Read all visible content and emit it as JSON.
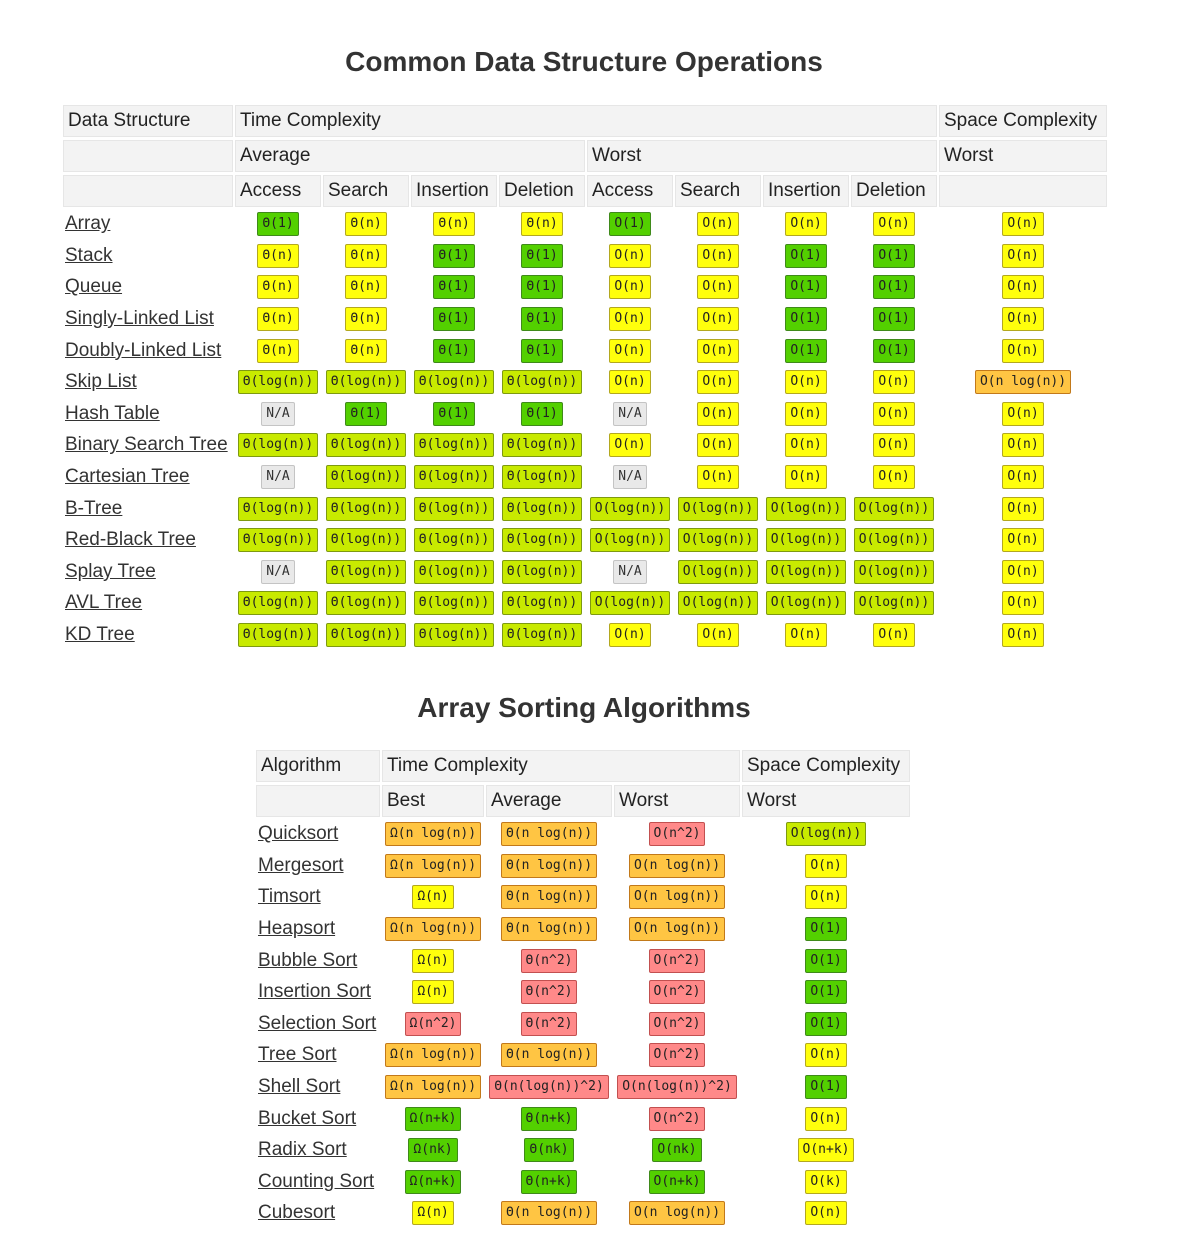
{
  "page": {
    "ds_title": "Common Data Structure Operations",
    "sort_title": "Array Sorting Algorithms"
  },
  "colors": {
    "green": "#53d000",
    "light-green": "#c8ea00",
    "yellow": "#ffff0c",
    "orange": "#ffc543",
    "red": "#ff8989",
    "gray": "#e9e9e9"
  },
  "ds": {
    "headers": {
      "data_structure": "Data Structure",
      "time_complexity": "Time Complexity",
      "space_complexity": "Space Complexity",
      "average": "Average",
      "worst": "Worst",
      "space_worst": "Worst",
      "ops": [
        "Access",
        "Search",
        "Insertion",
        "Deletion",
        "Access",
        "Search",
        "Insertion",
        "Deletion"
      ]
    },
    "rows": [
      {
        "name": "Array",
        "cells": [
          [
            "Θ(1)",
            "green"
          ],
          [
            "Θ(n)",
            "yellow"
          ],
          [
            "Θ(n)",
            "yellow"
          ],
          [
            "Θ(n)",
            "yellow"
          ],
          [
            "O(1)",
            "green"
          ],
          [
            "O(n)",
            "yellow"
          ],
          [
            "O(n)",
            "yellow"
          ],
          [
            "O(n)",
            "yellow"
          ]
        ],
        "space": [
          "O(n)",
          "yellow"
        ]
      },
      {
        "name": "Stack",
        "cells": [
          [
            "Θ(n)",
            "yellow"
          ],
          [
            "Θ(n)",
            "yellow"
          ],
          [
            "Θ(1)",
            "green"
          ],
          [
            "Θ(1)",
            "green"
          ],
          [
            "O(n)",
            "yellow"
          ],
          [
            "O(n)",
            "yellow"
          ],
          [
            "O(1)",
            "green"
          ],
          [
            "O(1)",
            "green"
          ]
        ],
        "space": [
          "O(n)",
          "yellow"
        ]
      },
      {
        "name": "Queue",
        "cells": [
          [
            "Θ(n)",
            "yellow"
          ],
          [
            "Θ(n)",
            "yellow"
          ],
          [
            "Θ(1)",
            "green"
          ],
          [
            "Θ(1)",
            "green"
          ],
          [
            "O(n)",
            "yellow"
          ],
          [
            "O(n)",
            "yellow"
          ],
          [
            "O(1)",
            "green"
          ],
          [
            "O(1)",
            "green"
          ]
        ],
        "space": [
          "O(n)",
          "yellow"
        ]
      },
      {
        "name": "Singly-Linked List",
        "cells": [
          [
            "Θ(n)",
            "yellow"
          ],
          [
            "Θ(n)",
            "yellow"
          ],
          [
            "Θ(1)",
            "green"
          ],
          [
            "Θ(1)",
            "green"
          ],
          [
            "O(n)",
            "yellow"
          ],
          [
            "O(n)",
            "yellow"
          ],
          [
            "O(1)",
            "green"
          ],
          [
            "O(1)",
            "green"
          ]
        ],
        "space": [
          "O(n)",
          "yellow"
        ]
      },
      {
        "name": "Doubly-Linked List",
        "cells": [
          [
            "Θ(n)",
            "yellow"
          ],
          [
            "Θ(n)",
            "yellow"
          ],
          [
            "Θ(1)",
            "green"
          ],
          [
            "Θ(1)",
            "green"
          ],
          [
            "O(n)",
            "yellow"
          ],
          [
            "O(n)",
            "yellow"
          ],
          [
            "O(1)",
            "green"
          ],
          [
            "O(1)",
            "green"
          ]
        ],
        "space": [
          "O(n)",
          "yellow"
        ]
      },
      {
        "name": "Skip List",
        "cells": [
          [
            "Θ(log(n))",
            "light-green"
          ],
          [
            "Θ(log(n))",
            "light-green"
          ],
          [
            "Θ(log(n))",
            "light-green"
          ],
          [
            "Θ(log(n))",
            "light-green"
          ],
          [
            "O(n)",
            "yellow"
          ],
          [
            "O(n)",
            "yellow"
          ],
          [
            "O(n)",
            "yellow"
          ],
          [
            "O(n)",
            "yellow"
          ]
        ],
        "space": [
          "O(n log(n))",
          "orange"
        ]
      },
      {
        "name": "Hash Table",
        "cells": [
          [
            "N/A",
            "gray"
          ],
          [
            "Θ(1)",
            "green"
          ],
          [
            "Θ(1)",
            "green"
          ],
          [
            "Θ(1)",
            "green"
          ],
          [
            "N/A",
            "gray"
          ],
          [
            "O(n)",
            "yellow"
          ],
          [
            "O(n)",
            "yellow"
          ],
          [
            "O(n)",
            "yellow"
          ]
        ],
        "space": [
          "O(n)",
          "yellow"
        ]
      },
      {
        "name": "Binary Search Tree",
        "cells": [
          [
            "Θ(log(n))",
            "light-green"
          ],
          [
            "Θ(log(n))",
            "light-green"
          ],
          [
            "Θ(log(n))",
            "light-green"
          ],
          [
            "Θ(log(n))",
            "light-green"
          ],
          [
            "O(n)",
            "yellow"
          ],
          [
            "O(n)",
            "yellow"
          ],
          [
            "O(n)",
            "yellow"
          ],
          [
            "O(n)",
            "yellow"
          ]
        ],
        "space": [
          "O(n)",
          "yellow"
        ]
      },
      {
        "name": "Cartesian Tree",
        "cells": [
          [
            "N/A",
            "gray"
          ],
          [
            "Θ(log(n))",
            "light-green"
          ],
          [
            "Θ(log(n))",
            "light-green"
          ],
          [
            "Θ(log(n))",
            "light-green"
          ],
          [
            "N/A",
            "gray"
          ],
          [
            "O(n)",
            "yellow"
          ],
          [
            "O(n)",
            "yellow"
          ],
          [
            "O(n)",
            "yellow"
          ]
        ],
        "space": [
          "O(n)",
          "yellow"
        ]
      },
      {
        "name": "B-Tree",
        "cells": [
          [
            "Θ(log(n))",
            "light-green"
          ],
          [
            "Θ(log(n))",
            "light-green"
          ],
          [
            "Θ(log(n))",
            "light-green"
          ],
          [
            "Θ(log(n))",
            "light-green"
          ],
          [
            "O(log(n))",
            "light-green"
          ],
          [
            "O(log(n))",
            "light-green"
          ],
          [
            "O(log(n))",
            "light-green"
          ],
          [
            "O(log(n))",
            "light-green"
          ]
        ],
        "space": [
          "O(n)",
          "yellow"
        ]
      },
      {
        "name": "Red-Black Tree",
        "cells": [
          [
            "Θ(log(n))",
            "light-green"
          ],
          [
            "Θ(log(n))",
            "light-green"
          ],
          [
            "Θ(log(n))",
            "light-green"
          ],
          [
            "Θ(log(n))",
            "light-green"
          ],
          [
            "O(log(n))",
            "light-green"
          ],
          [
            "O(log(n))",
            "light-green"
          ],
          [
            "O(log(n))",
            "light-green"
          ],
          [
            "O(log(n))",
            "light-green"
          ]
        ],
        "space": [
          "O(n)",
          "yellow"
        ]
      },
      {
        "name": "Splay Tree",
        "cells": [
          [
            "N/A",
            "gray"
          ],
          [
            "Θ(log(n))",
            "light-green"
          ],
          [
            "Θ(log(n))",
            "light-green"
          ],
          [
            "Θ(log(n))",
            "light-green"
          ],
          [
            "N/A",
            "gray"
          ],
          [
            "O(log(n))",
            "light-green"
          ],
          [
            "O(log(n))",
            "light-green"
          ],
          [
            "O(log(n))",
            "light-green"
          ]
        ],
        "space": [
          "O(n)",
          "yellow"
        ]
      },
      {
        "name": "AVL Tree",
        "cells": [
          [
            "Θ(log(n))",
            "light-green"
          ],
          [
            "Θ(log(n))",
            "light-green"
          ],
          [
            "Θ(log(n))",
            "light-green"
          ],
          [
            "Θ(log(n))",
            "light-green"
          ],
          [
            "O(log(n))",
            "light-green"
          ],
          [
            "O(log(n))",
            "light-green"
          ],
          [
            "O(log(n))",
            "light-green"
          ],
          [
            "O(log(n))",
            "light-green"
          ]
        ],
        "space": [
          "O(n)",
          "yellow"
        ]
      },
      {
        "name": "KD Tree",
        "cells": [
          [
            "Θ(log(n))",
            "light-green"
          ],
          [
            "Θ(log(n))",
            "light-green"
          ],
          [
            "Θ(log(n))",
            "light-green"
          ],
          [
            "Θ(log(n))",
            "light-green"
          ],
          [
            "O(n)",
            "yellow"
          ],
          [
            "O(n)",
            "yellow"
          ],
          [
            "O(n)",
            "yellow"
          ],
          [
            "O(n)",
            "yellow"
          ]
        ],
        "space": [
          "O(n)",
          "yellow"
        ]
      }
    ]
  },
  "sort": {
    "headers": {
      "algorithm": "Algorithm",
      "time_complexity": "Time Complexity",
      "space_complexity": "Space Complexity",
      "best": "Best",
      "average": "Average",
      "worst": "Worst",
      "space_worst": "Worst"
    },
    "rows": [
      {
        "name": "Quicksort",
        "cells": [
          [
            "Ω(n log(n))",
            "orange"
          ],
          [
            "Θ(n log(n))",
            "orange"
          ],
          [
            "O(n^2)",
            "red"
          ]
        ],
        "space": [
          "O(log(n))",
          "light-green"
        ]
      },
      {
        "name": "Mergesort",
        "cells": [
          [
            "Ω(n log(n))",
            "orange"
          ],
          [
            "Θ(n log(n))",
            "orange"
          ],
          [
            "O(n log(n))",
            "orange"
          ]
        ],
        "space": [
          "O(n)",
          "yellow"
        ]
      },
      {
        "name": "Timsort",
        "cells": [
          [
            "Ω(n)",
            "yellow"
          ],
          [
            "Θ(n log(n))",
            "orange"
          ],
          [
            "O(n log(n))",
            "orange"
          ]
        ],
        "space": [
          "O(n)",
          "yellow"
        ]
      },
      {
        "name": "Heapsort",
        "cells": [
          [
            "Ω(n log(n))",
            "orange"
          ],
          [
            "Θ(n log(n))",
            "orange"
          ],
          [
            "O(n log(n))",
            "orange"
          ]
        ],
        "space": [
          "O(1)",
          "green"
        ]
      },
      {
        "name": "Bubble Sort",
        "cells": [
          [
            "Ω(n)",
            "yellow"
          ],
          [
            "Θ(n^2)",
            "red"
          ],
          [
            "O(n^2)",
            "red"
          ]
        ],
        "space": [
          "O(1)",
          "green"
        ]
      },
      {
        "name": "Insertion Sort",
        "cells": [
          [
            "Ω(n)",
            "yellow"
          ],
          [
            "Θ(n^2)",
            "red"
          ],
          [
            "O(n^2)",
            "red"
          ]
        ],
        "space": [
          "O(1)",
          "green"
        ]
      },
      {
        "name": "Selection Sort",
        "cells": [
          [
            "Ω(n^2)",
            "red"
          ],
          [
            "Θ(n^2)",
            "red"
          ],
          [
            "O(n^2)",
            "red"
          ]
        ],
        "space": [
          "O(1)",
          "green"
        ]
      },
      {
        "name": "Tree Sort",
        "cells": [
          [
            "Ω(n log(n))",
            "orange"
          ],
          [
            "Θ(n log(n))",
            "orange"
          ],
          [
            "O(n^2)",
            "red"
          ]
        ],
        "space": [
          "O(n)",
          "yellow"
        ]
      },
      {
        "name": "Shell Sort",
        "cells": [
          [
            "Ω(n log(n))",
            "orange"
          ],
          [
            "Θ(n(log(n))^2)",
            "red"
          ],
          [
            "O(n(log(n))^2)",
            "red"
          ]
        ],
        "space": [
          "O(1)",
          "green"
        ]
      },
      {
        "name": "Bucket Sort",
        "cells": [
          [
            "Ω(n+k)",
            "green"
          ],
          [
            "Θ(n+k)",
            "green"
          ],
          [
            "O(n^2)",
            "red"
          ]
        ],
        "space": [
          "O(n)",
          "yellow"
        ]
      },
      {
        "name": "Radix Sort",
        "cells": [
          [
            "Ω(nk)",
            "green"
          ],
          [
            "Θ(nk)",
            "green"
          ],
          [
            "O(nk)",
            "green"
          ]
        ],
        "space": [
          "O(n+k)",
          "yellow"
        ]
      },
      {
        "name": "Counting Sort",
        "cells": [
          [
            "Ω(n+k)",
            "green"
          ],
          [
            "Θ(n+k)",
            "green"
          ],
          [
            "O(n+k)",
            "green"
          ]
        ],
        "space": [
          "O(k)",
          "yellow"
        ]
      },
      {
        "name": "Cubesort",
        "cells": [
          [
            "Ω(n)",
            "yellow"
          ],
          [
            "Θ(n log(n))",
            "orange"
          ],
          [
            "O(n log(n))",
            "orange"
          ]
        ],
        "space": [
          "O(n)",
          "yellow"
        ]
      }
    ]
  }
}
